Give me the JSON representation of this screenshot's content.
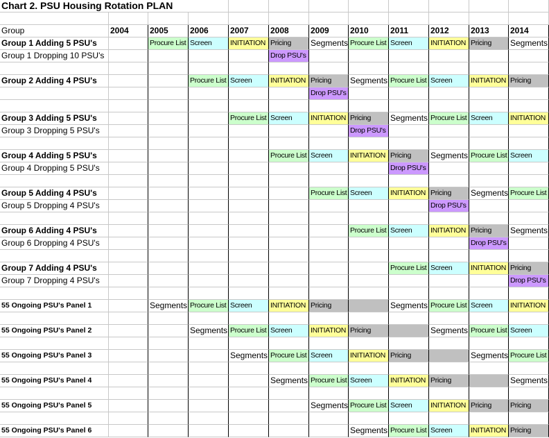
{
  "title": "Chart 2.  PSU Housing Rotation PLAN",
  "header": {
    "group_label": "Group",
    "years": [
      "2004",
      "2005",
      "2006",
      "2007",
      "2008",
      "2009",
      "2010",
      "2011",
      "2012",
      "2013",
      "2014"
    ]
  },
  "colors": {
    "procure": "#ccffcc",
    "screen": "#ccffff",
    "initiation": "#ffff99",
    "pricing": "#c0c0c0",
    "drop": "#cc99ff",
    "grid": "#c8c8c8"
  },
  "rows": [
    {
      "label": "Group 1 Adding 5 PSU's",
      "style": "bold",
      "cells": [
        [
          "",
          ""
        ],
        [
          "Procure List",
          "procure"
        ],
        [
          "Screen",
          "screen"
        ],
        [
          "INITIATION",
          "initiation"
        ],
        [
          "Pricing",
          "pricing"
        ],
        [
          "Segments",
          "seg"
        ],
        [
          "Procure List",
          "procure"
        ],
        [
          "Screen",
          "screen"
        ],
        [
          "INITIATION",
          "initiation"
        ],
        [
          "Pricing",
          "pricing"
        ],
        [
          "Segments",
          "seg"
        ]
      ]
    },
    {
      "label": "Group 1 Dropping 10 PSU's",
      "style": "normal",
      "cells": [
        [
          "",
          ""
        ],
        [
          "",
          ""
        ],
        [
          "",
          ""
        ],
        [
          "",
          ""
        ],
        [
          "Drop PSU's",
          "drop"
        ],
        [
          "",
          ""
        ],
        [
          "",
          ""
        ],
        [
          "",
          ""
        ],
        [
          "",
          ""
        ],
        [
          "",
          ""
        ],
        [
          "",
          ""
        ]
      ]
    },
    null,
    {
      "label": "Group 2 Adding 4 PSU's",
      "style": "bold",
      "cells": [
        [
          "",
          ""
        ],
        [
          "",
          ""
        ],
        [
          "Procure List",
          "procure"
        ],
        [
          "Screen",
          "screen"
        ],
        [
          "INITIATION",
          "initiation"
        ],
        [
          "Pricing",
          "pricing"
        ],
        [
          "Segments",
          "seg"
        ],
        [
          "Procure List",
          "procure"
        ],
        [
          "Screen",
          "screen"
        ],
        [
          "INITIATION",
          "initiation"
        ],
        [
          "Pricing",
          "pricing"
        ]
      ]
    },
    {
      "label": "",
      "style": "normal",
      "cells": [
        [
          "",
          ""
        ],
        [
          "",
          ""
        ],
        [
          "",
          ""
        ],
        [
          "",
          ""
        ],
        [
          "",
          ""
        ],
        [
          "Drop PSU's",
          "drop"
        ],
        [
          "",
          ""
        ],
        [
          "",
          ""
        ],
        [
          "",
          ""
        ],
        [
          "",
          ""
        ],
        [
          "",
          ""
        ]
      ]
    },
    null,
    {
      "label": "Group 3 Adding 5 PSU's",
      "style": "bold",
      "cells": [
        [
          "",
          ""
        ],
        [
          "",
          ""
        ],
        [
          "",
          ""
        ],
        [
          "Procure List",
          "procure"
        ],
        [
          "Screen",
          "screen"
        ],
        [
          "INITIATION",
          "initiation"
        ],
        [
          "Pricing",
          "pricing"
        ],
        [
          "Segments",
          "seg"
        ],
        [
          "Procure List",
          "procure"
        ],
        [
          "Screen",
          "screen"
        ],
        [
          "INITIATION",
          "initiation"
        ]
      ]
    },
    {
      "label": "Group 3 Dropping 5 PSU's",
      "style": "normal",
      "cells": [
        [
          "",
          ""
        ],
        [
          "",
          ""
        ],
        [
          "",
          ""
        ],
        [
          "",
          ""
        ],
        [
          "",
          ""
        ],
        [
          "",
          ""
        ],
        [
          "Drop PSU's",
          "drop"
        ],
        [
          "",
          ""
        ],
        [
          "",
          ""
        ],
        [
          "",
          ""
        ],
        [
          "",
          ""
        ]
      ]
    },
    null,
    {
      "label": "Group 4 Adding 5 PSU's",
      "style": "bold",
      "cells": [
        [
          "",
          ""
        ],
        [
          "",
          ""
        ],
        [
          "",
          ""
        ],
        [
          "",
          ""
        ],
        [
          "Procure List",
          "procure"
        ],
        [
          "Screen",
          "screen"
        ],
        [
          "INITIATION",
          "initiation"
        ],
        [
          "Pricing",
          "pricing"
        ],
        [
          "Segments",
          "seg"
        ],
        [
          "Procure List",
          "procure"
        ],
        [
          "Screen",
          "screen"
        ]
      ]
    },
    {
      "label": "Group 4 Dropping 5 PSU's",
      "style": "normal",
      "cells": [
        [
          "",
          ""
        ],
        [
          "",
          ""
        ],
        [
          "",
          ""
        ],
        [
          "",
          ""
        ],
        [
          "",
          ""
        ],
        [
          "",
          ""
        ],
        [
          "",
          ""
        ],
        [
          "Drop PSU's",
          "drop"
        ],
        [
          "",
          ""
        ],
        [
          "",
          ""
        ],
        [
          "",
          ""
        ]
      ]
    },
    null,
    {
      "label": "Group 5 Adding 4 PSU's",
      "style": "bold",
      "cells": [
        [
          "",
          ""
        ],
        [
          "",
          ""
        ],
        [
          "",
          ""
        ],
        [
          "",
          ""
        ],
        [
          "",
          ""
        ],
        [
          "Procure List",
          "procure"
        ],
        [
          "Screen",
          "screen"
        ],
        [
          "INITIATION",
          "initiation"
        ],
        [
          "Pricing",
          "pricing"
        ],
        [
          "Segments",
          "seg"
        ],
        [
          "Procure List",
          "procure"
        ]
      ]
    },
    {
      "label": "Group 5 Dropping 4 PSU's",
      "style": "normal",
      "cells": [
        [
          "",
          ""
        ],
        [
          "",
          ""
        ],
        [
          "",
          ""
        ],
        [
          "",
          ""
        ],
        [
          "",
          ""
        ],
        [
          "",
          ""
        ],
        [
          "",
          ""
        ],
        [
          "",
          ""
        ],
        [
          "Drop PSU's",
          "drop"
        ],
        [
          "",
          ""
        ],
        [
          "",
          ""
        ]
      ]
    },
    null,
    {
      "label": "Group 6 Adding 4 PSU's",
      "style": "bold",
      "cells": [
        [
          "",
          ""
        ],
        [
          "",
          ""
        ],
        [
          "",
          ""
        ],
        [
          "",
          ""
        ],
        [
          "",
          ""
        ],
        [
          "",
          ""
        ],
        [
          "Procure List",
          "procure"
        ],
        [
          "Screen",
          "screen"
        ],
        [
          "INITIATION",
          "initiation"
        ],
        [
          "Pricing",
          "pricing"
        ],
        [
          "Segments",
          "seg"
        ]
      ]
    },
    {
      "label": "Group 6 Dropping 4 PSU's",
      "style": "normal",
      "cells": [
        [
          "",
          ""
        ],
        [
          "",
          ""
        ],
        [
          "",
          ""
        ],
        [
          "",
          ""
        ],
        [
          "",
          ""
        ],
        [
          "",
          ""
        ],
        [
          "",
          ""
        ],
        [
          "",
          ""
        ],
        [
          "",
          ""
        ],
        [
          "Drop PSU's",
          "drop"
        ],
        [
          "",
          ""
        ]
      ]
    },
    null,
    {
      "label": "Group 7 Adding 4 PSU's",
      "style": "bold",
      "cells": [
        [
          "",
          ""
        ],
        [
          "",
          ""
        ],
        [
          "",
          ""
        ],
        [
          "",
          ""
        ],
        [
          "",
          ""
        ],
        [
          "",
          ""
        ],
        [
          "",
          ""
        ],
        [
          "Procure List",
          "procure"
        ],
        [
          "Screen",
          "screen"
        ],
        [
          "INITIATION",
          "initiation"
        ],
        [
          "Pricing",
          "pricing"
        ]
      ]
    },
    {
      "label": "Group 7 Dropping 4 PSU's",
      "style": "normal",
      "cells": [
        [
          "",
          ""
        ],
        [
          "",
          ""
        ],
        [
          "",
          ""
        ],
        [
          "",
          ""
        ],
        [
          "",
          ""
        ],
        [
          "",
          ""
        ],
        [
          "",
          ""
        ],
        [
          "",
          ""
        ],
        [
          "",
          ""
        ],
        [
          "",
          ""
        ],
        [
          "Drop PSU's",
          "drop"
        ]
      ]
    },
    null,
    {
      "label": "55 Ongoing PSU's Panel 1",
      "style": "panel",
      "cells": [
        [
          "",
          ""
        ],
        [
          "Segments",
          "seg"
        ],
        [
          "Procure List",
          "procure"
        ],
        [
          "Screen",
          "screen"
        ],
        [
          "INITIATION",
          "initiation"
        ],
        [
          "Pricing",
          "pricing"
        ],
        [
          "",
          "pricing"
        ],
        [
          "Segments",
          "seg"
        ],
        [
          "Procure List",
          "procure"
        ],
        [
          "Screen",
          "screen"
        ],
        [
          "INITIATION",
          "initiation"
        ]
      ]
    },
    null,
    {
      "label": "55 Ongoing PSU's Panel 2",
      "style": "panel",
      "cells": [
        [
          "",
          ""
        ],
        [
          "",
          ""
        ],
        [
          "Segments",
          "seg"
        ],
        [
          "Procure List",
          "procure"
        ],
        [
          "Screen",
          "screen"
        ],
        [
          "INITIATION",
          "initiation"
        ],
        [
          "Pricing",
          "pricing"
        ],
        [
          "",
          "pricing"
        ],
        [
          "Segments",
          "seg"
        ],
        [
          "Procure List",
          "procure"
        ],
        [
          "Screen",
          "screen"
        ]
      ]
    },
    null,
    {
      "label": "55 Ongoing PSU's Panel 3",
      "style": "panel",
      "cells": [
        [
          "",
          ""
        ],
        [
          "",
          ""
        ],
        [
          "",
          ""
        ],
        [
          "Segments",
          "seg"
        ],
        [
          "Procure List",
          "procure"
        ],
        [
          "Screen",
          "screen"
        ],
        [
          "INITIATION",
          "initiation"
        ],
        [
          "Pricing",
          "pricing"
        ],
        [
          "",
          "pricing"
        ],
        [
          "Segments",
          "seg"
        ],
        [
          "Procure List",
          "procure"
        ]
      ]
    },
    null,
    {
      "label": "55 Ongoing PSU's Panel 4",
      "style": "panel",
      "cells": [
        [
          "",
          ""
        ],
        [
          "",
          ""
        ],
        [
          "",
          ""
        ],
        [
          "",
          ""
        ],
        [
          "Segments",
          "seg"
        ],
        [
          "Procure List",
          "procure"
        ],
        [
          "Screen",
          "screen"
        ],
        [
          "INITIATION",
          "initiation"
        ],
        [
          "Pricing",
          "pricing"
        ],
        [
          "",
          "pricing"
        ],
        [
          "Segments",
          "seg"
        ]
      ]
    },
    null,
    {
      "label": "55 Ongoing PSU's Panel 5",
      "style": "panel",
      "cells": [
        [
          "",
          ""
        ],
        [
          "",
          ""
        ],
        [
          "",
          ""
        ],
        [
          "",
          ""
        ],
        [
          "",
          ""
        ],
        [
          "Segments",
          "seg"
        ],
        [
          "Procure List",
          "procure"
        ],
        [
          "Screen",
          "screen"
        ],
        [
          "INITIATION",
          "initiation"
        ],
        [
          "Pricing",
          "pricing"
        ],
        [
          "Pricing",
          "pricing"
        ]
      ]
    },
    null,
    {
      "label": "55 Ongoing PSU's Panel 6",
      "style": "panel",
      "cells": [
        [
          "",
          ""
        ],
        [
          "",
          ""
        ],
        [
          "",
          ""
        ],
        [
          "",
          ""
        ],
        [
          "",
          ""
        ],
        [
          "",
          ""
        ],
        [
          "Segments",
          "seg"
        ],
        [
          "Procure List",
          "procure"
        ],
        [
          "Screen",
          "screen"
        ],
        [
          "INITIATION",
          "initiation"
        ],
        [
          "Pricing",
          "pricing"
        ]
      ]
    }
  ]
}
